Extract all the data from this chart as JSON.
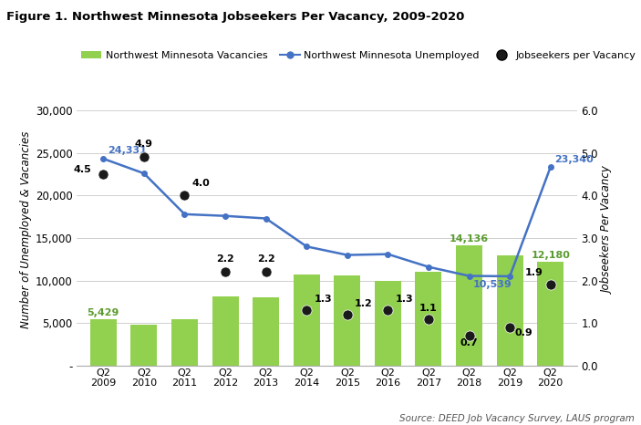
{
  "years": [
    "Q2\n2009",
    "Q2\n2010",
    "Q2\n2011",
    "Q2\n2012",
    "Q2\n2013",
    "Q2\n2014",
    "Q2\n2015",
    "Q2\n2016",
    "Q2\n2017",
    "Q2\n2018",
    "Q2\n2019",
    "Q2\n2020"
  ],
  "vacancies": [
    5429,
    4800,
    5500,
    8100,
    8000,
    10700,
    10600,
    9900,
    11000,
    14136,
    13000,
    12180
  ],
  "unemployed": [
    24331,
    22600,
    17800,
    17600,
    17300,
    14000,
    13000,
    13100,
    11600,
    10539,
    10500,
    23340
  ],
  "jobseekers_per_vacancy": [
    4.5,
    4.9,
    4.0,
    2.2,
    2.2,
    1.3,
    1.2,
    1.3,
    1.1,
    0.7,
    0.9,
    1.9
  ],
  "bar_color": "#92d050",
  "line_color": "#4472c4",
  "dot_color": "#1a1a1a",
  "title": "Figure 1. Northwest Minnesota Jobseekers Per Vacancy, 2009-2020",
  "ylabel_left": "Number of Unemployed & Vacancies",
  "ylabel_right": "Jobseekers Per Vacancy",
  "ylim_left": [
    0,
    32000
  ],
  "ylim_right": [
    0,
    6.4
  ],
  "yticks_left": [
    0,
    5000,
    10000,
    15000,
    20000,
    25000,
    30000
  ],
  "ytick_labels_left": [
    "-",
    "5,000",
    "10,000",
    "15,000",
    "20,000",
    "25,000",
    "30,000"
  ],
  "yticks_right": [
    0.0,
    1.0,
    2.0,
    3.0,
    4.0,
    5.0,
    6.0
  ],
  "source_text": "Source: DEED Job Vacancy Survey, LAUS program",
  "legend_labels": [
    "Northwest Minnesota Vacancies",
    "Northwest Minnesota Unemployed",
    "Jobseekers per Vacancy"
  ],
  "vacancy_show": [
    true,
    false,
    false,
    false,
    false,
    false,
    false,
    false,
    false,
    true,
    false,
    true
  ],
  "vacancy_label_vals": [
    "5,429",
    "",
    "",
    "",
    "",
    "",
    "",
    "",
    "",
    "14,136",
    "",
    "12,180"
  ],
  "unemployed_show": [
    true,
    false,
    false,
    false,
    false,
    false,
    false,
    false,
    false,
    true,
    false,
    true
  ],
  "unemployed_label_vals": [
    "24,331",
    "",
    "",
    "",
    "",
    "",
    "",
    "",
    "",
    "10,539",
    "",
    "23,340"
  ],
  "jpv_labels": [
    "4.5",
    "4.9",
    "4.0",
    "2.2",
    "2.2",
    "1.3",
    "1.2",
    "1.3",
    "1.1",
    "0.7",
    "0.9",
    "1.9"
  ],
  "jpv_label_dx": [
    -0.3,
    0.0,
    0.18,
    0.0,
    0.0,
    0.18,
    0.18,
    0.18,
    0.0,
    0.0,
    0.12,
    -0.18
  ],
  "jpv_label_dy": [
    0.0,
    0.2,
    0.18,
    0.2,
    0.2,
    0.15,
    0.15,
    0.15,
    0.15,
    -0.28,
    -0.25,
    0.18
  ],
  "jpv_label_ha": [
    "right",
    "center",
    "left",
    "center",
    "center",
    "left",
    "left",
    "left",
    "center",
    "center",
    "left",
    "right"
  ]
}
